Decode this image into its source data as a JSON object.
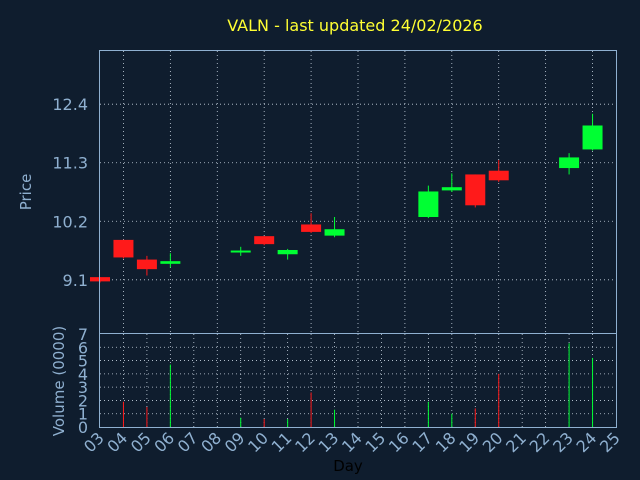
{
  "chart_data": {
    "type": "candlestick",
    "title": "VALN - last updated 24/02/2026",
    "xlabel": "Day",
    "price_ylabel": "Price",
    "volume_ylabel": "Volume (0000)",
    "x_ticks": [
      "03",
      "04",
      "05",
      "06",
      "07",
      "08",
      "09",
      "10",
      "11",
      "12",
      "13",
      "14",
      "15",
      "16",
      "17",
      "18",
      "19",
      "20",
      "21",
      "22",
      "23",
      "24",
      "25"
    ],
    "price_ticks": [
      "9.1",
      "10.2",
      "11.3",
      "12.4"
    ],
    "price_tick_values": [
      9.1,
      10.2,
      11.3,
      12.4
    ],
    "price_range": [
      8.1,
      13.4
    ],
    "volume_ticks": [
      "0",
      "1",
      "2",
      "3",
      "4",
      "5",
      "6",
      "7"
    ],
    "volume_range": [
      0,
      7
    ],
    "x_range": [
      3,
      25
    ],
    "grid": true,
    "up_color": "#00ff33",
    "down_color": "#ff1a1a",
    "candles": [
      {
        "day": 3,
        "open": 9.15,
        "close": 9.07,
        "high": 9.15,
        "low": 9.05,
        "volume": 0.0
      },
      {
        "day": 4,
        "open": 9.85,
        "close": 9.52,
        "high": 9.85,
        "low": 9.5,
        "volume": 1.9
      },
      {
        "day": 5,
        "open": 9.48,
        "close": 9.3,
        "high": 9.55,
        "low": 9.18,
        "volume": 1.5
      },
      {
        "day": 6,
        "open": 9.4,
        "close": 9.45,
        "high": 9.6,
        "low": 9.33,
        "volume": 4.7
      },
      {
        "day": 9,
        "open": 9.62,
        "close": 9.65,
        "high": 9.72,
        "low": 9.55,
        "volume": 0.7
      },
      {
        "day": 10,
        "open": 9.92,
        "close": 9.77,
        "high": 9.92,
        "low": 9.75,
        "volume": 0.6
      },
      {
        "day": 11,
        "open": 9.58,
        "close": 9.66,
        "high": 9.68,
        "low": 9.48,
        "volume": 0.6
      },
      {
        "day": 12,
        "open": 10.14,
        "close": 10.0,
        "high": 10.35,
        "low": 9.98,
        "volume": 2.6
      },
      {
        "day": 13,
        "open": 9.93,
        "close": 10.05,
        "high": 10.28,
        "low": 9.9,
        "volume": 1.3
      },
      {
        "day": 17,
        "open": 10.28,
        "close": 10.76,
        "high": 10.87,
        "low": 10.26,
        "volume": 1.9
      },
      {
        "day": 18,
        "open": 10.78,
        "close": 10.84,
        "high": 11.1,
        "low": 10.75,
        "volume": 1.0
      },
      {
        "day": 19,
        "open": 11.08,
        "close": 10.5,
        "high": 11.08,
        "low": 10.46,
        "volume": 1.4
      },
      {
        "day": 20,
        "open": 11.15,
        "close": 10.97,
        "high": 11.35,
        "low": 10.94,
        "volume": 4.0
      },
      {
        "day": 23,
        "open": 11.2,
        "close": 11.4,
        "high": 11.48,
        "low": 11.08,
        "volume": 6.3
      },
      {
        "day": 24,
        "open": 11.55,
        "close": 12.0,
        "high": 12.22,
        "low": 11.53,
        "volume": 5.2
      }
    ]
  }
}
